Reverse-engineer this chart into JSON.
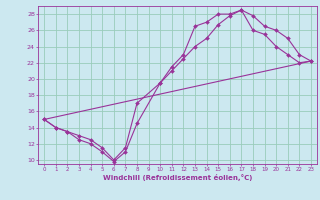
{
  "xlabel": "Windchill (Refroidissement éolien,°C)",
  "bg_color": "#cce8f0",
  "grid_color": "#99ccbb",
  "line_color": "#993399",
  "xlim": [
    -0.5,
    23.5
  ],
  "ylim": [
    9.5,
    29.0
  ],
  "xticks": [
    0,
    1,
    2,
    3,
    4,
    5,
    6,
    7,
    8,
    9,
    10,
    11,
    12,
    13,
    14,
    15,
    16,
    17,
    18,
    19,
    20,
    21,
    22,
    23
  ],
  "yticks": [
    10,
    12,
    14,
    16,
    18,
    20,
    22,
    24,
    26,
    28
  ],
  "line1_x": [
    0,
    1,
    2,
    3,
    4,
    5,
    6,
    7,
    8,
    10,
    11,
    12,
    13,
    14,
    15,
    16,
    17,
    18,
    19,
    20,
    21,
    22,
    23
  ],
  "line1_y": [
    15.0,
    14.0,
    13.5,
    12.5,
    12.0,
    11.0,
    9.8,
    11.0,
    14.5,
    19.5,
    21.5,
    23.0,
    26.5,
    27.0,
    28.0,
    28.0,
    28.5,
    26.0,
    25.5,
    24.0,
    23.0,
    22.0,
    22.2
  ],
  "line2_x": [
    0,
    1,
    2,
    3,
    4,
    5,
    6,
    7,
    8,
    10,
    11,
    12,
    13,
    14,
    15,
    16,
    17,
    18,
    19,
    20,
    21,
    22,
    23
  ],
  "line2_y": [
    15.0,
    14.0,
    13.5,
    13.0,
    12.5,
    11.5,
    10.0,
    11.5,
    17.0,
    19.5,
    21.0,
    22.5,
    24.0,
    25.0,
    26.7,
    27.8,
    28.5,
    27.8,
    26.5,
    26.0,
    25.0,
    23.0,
    22.2
  ],
  "line3_x": [
    0,
    23
  ],
  "line3_y": [
    15.0,
    22.2
  ]
}
